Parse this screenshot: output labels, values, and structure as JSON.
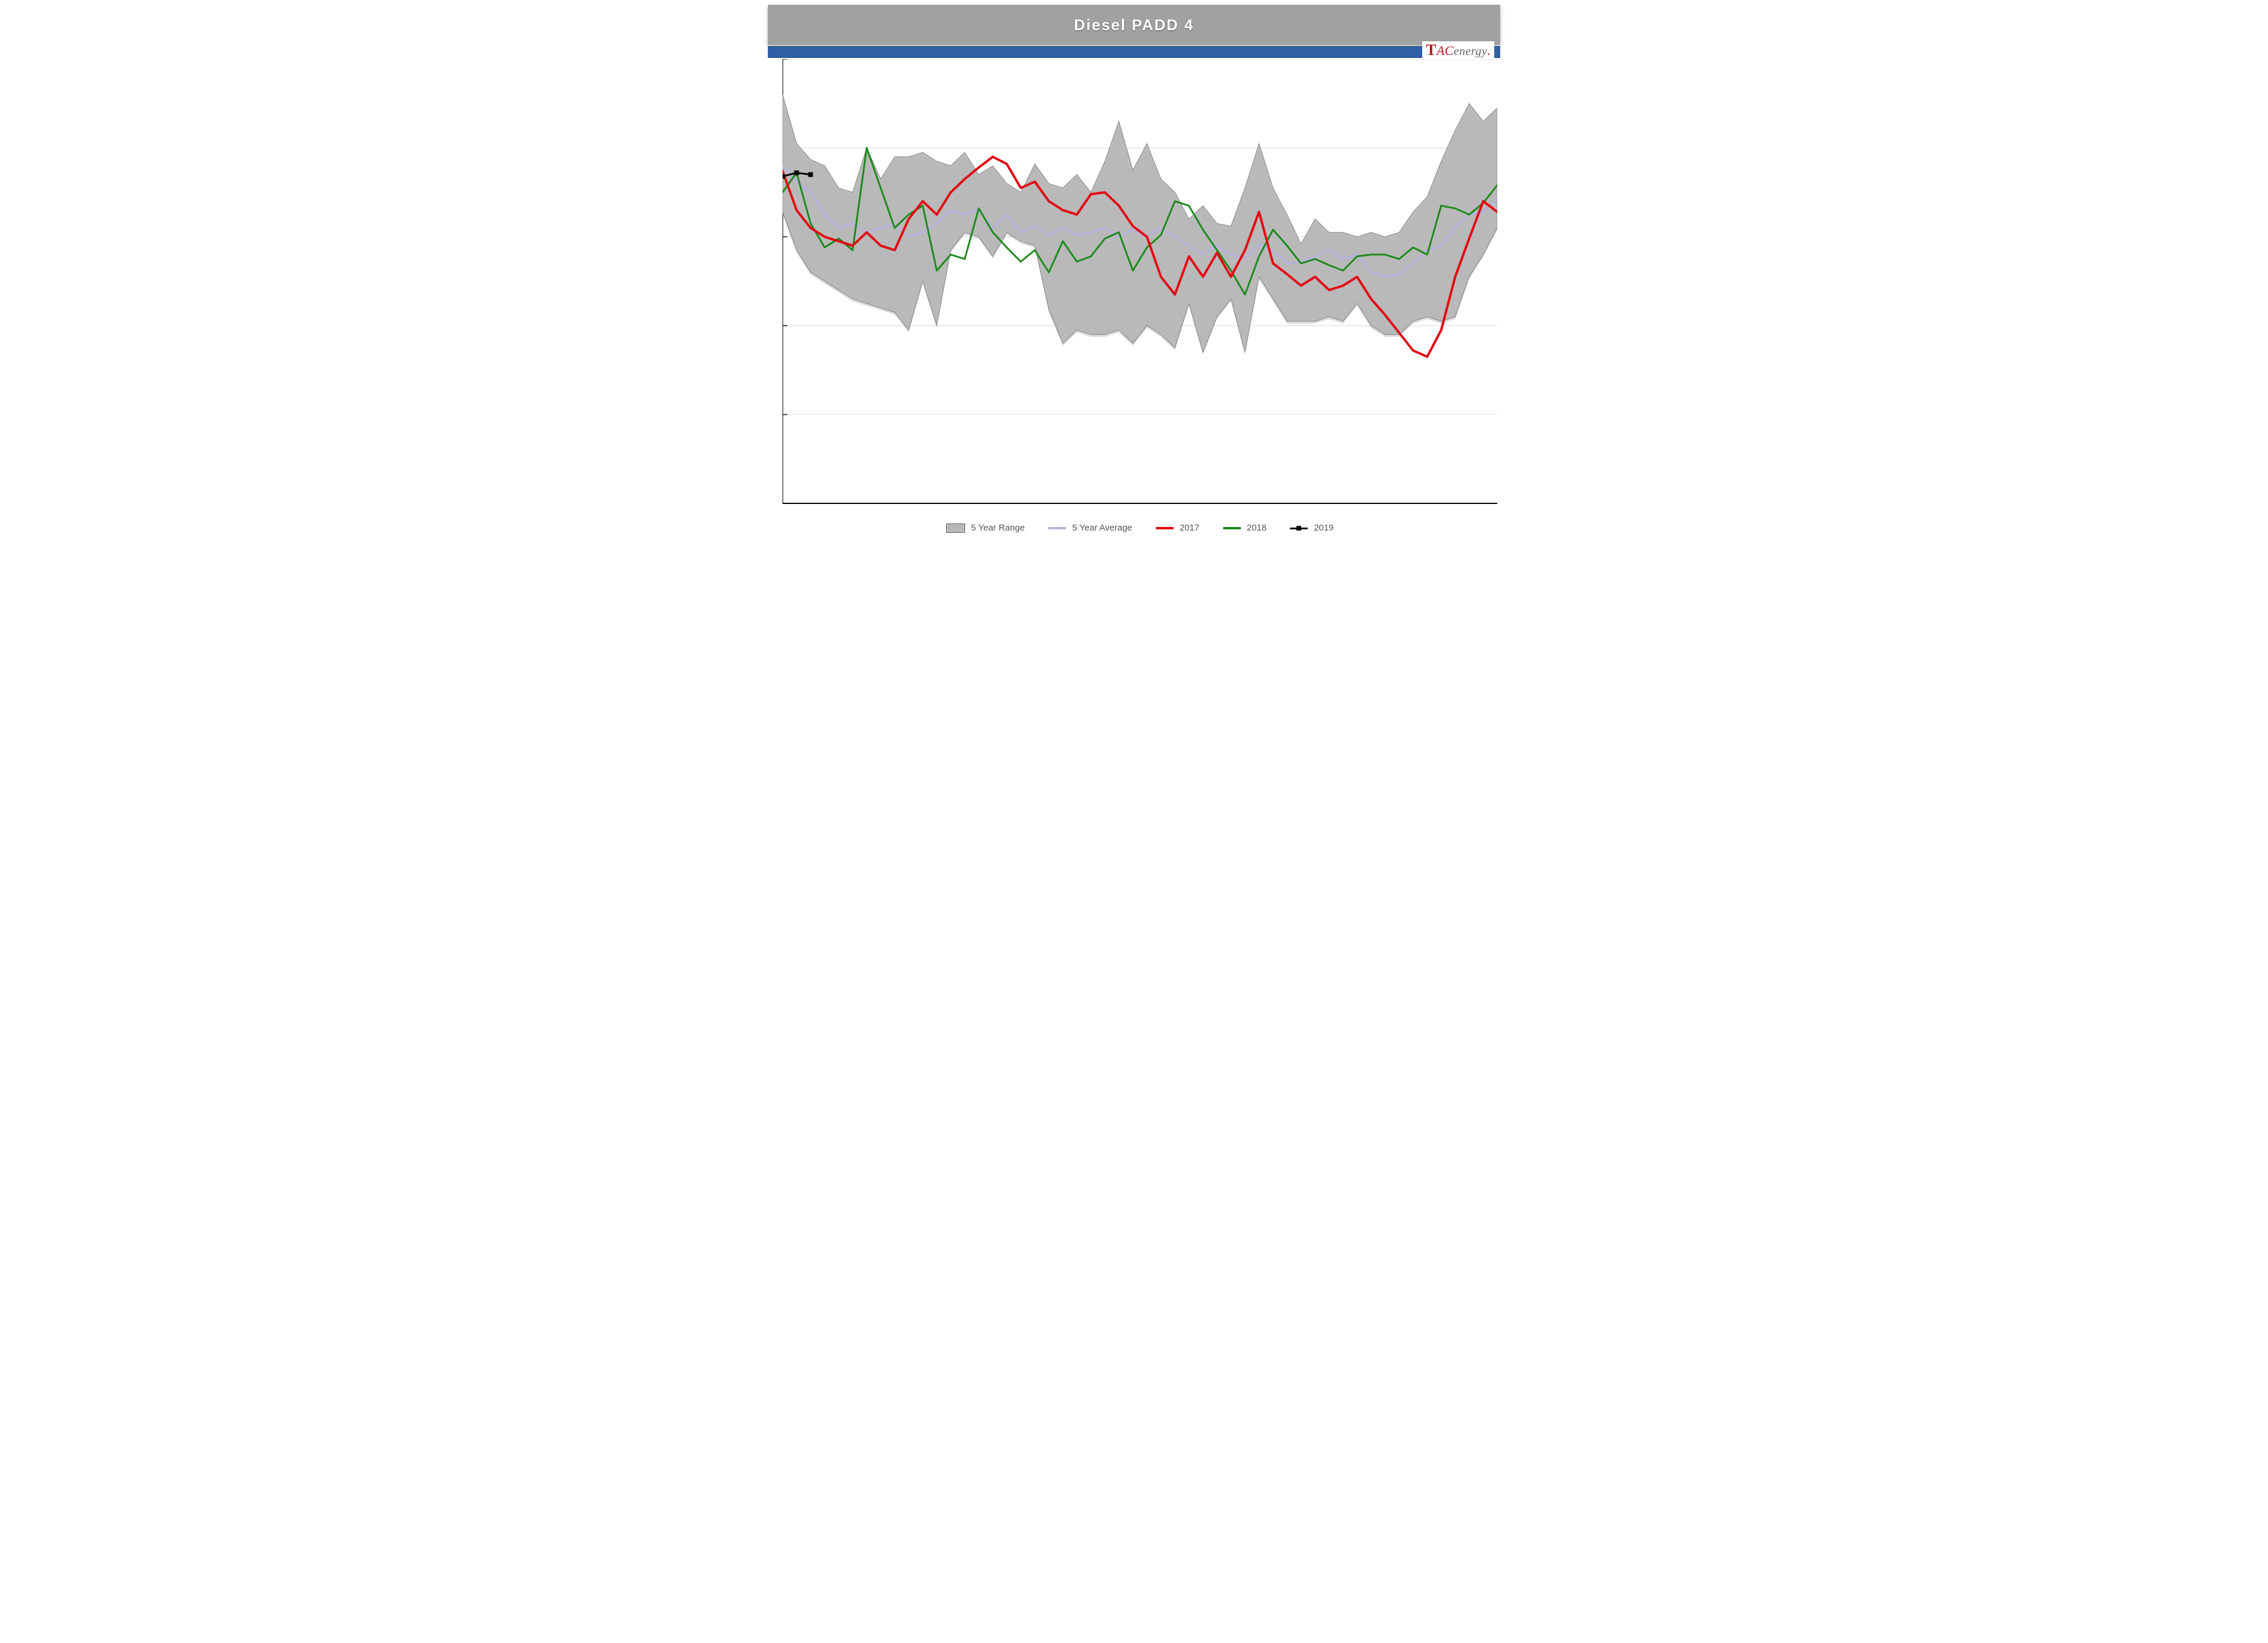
{
  "title": "Diesel  PADD  4",
  "logo": {
    "t": "T",
    "ac": "AC",
    "energy": "energy",
    "dot": "."
  },
  "legend": {
    "range": "5 Year Range",
    "avg": "5 Year Average",
    "y2017": "2017",
    "y2018": "2018",
    "y2019": "2019"
  },
  "chart": {
    "type": "line-with-band",
    "background_color": "#ffffff",
    "grid_color": "#e0e0e0",
    "title_bar_color": "#A1A1A1",
    "title_text_color": "#ffffff",
    "title_fontsize": 26,
    "blue_strip_color": "#2F5FA5",
    "x_count": 52,
    "ylim": [
      0,
      5
    ],
    "ytick_step": 1,
    "yticks": [
      0,
      1,
      2,
      3,
      4,
      5
    ],
    "label_fontsize": 14,
    "legend_fontsize": 15,
    "line_width": 4,
    "line_width_thin": 3,
    "marker_style_2019": "square",
    "marker_size_2019": 8,
    "colors": {
      "range_fill": "#B8B8B8",
      "range_stroke": "#808080",
      "avg": "#B7B2D8",
      "y2017": "#E30613",
      "y2018": "#1B8A1B",
      "y2019": "#000000"
    },
    "series": {
      "range_upper": [
        4.6,
        4.05,
        3.87,
        3.8,
        3.55,
        3.5,
        4.0,
        3.65,
        3.9,
        3.9,
        3.95,
        3.85,
        3.8,
        3.95,
        3.7,
        3.8,
        3.6,
        3.5,
        3.82,
        3.6,
        3.55,
        3.7,
        3.5,
        3.85,
        4.3,
        3.75,
        4.05,
        3.65,
        3.5,
        3.2,
        3.35,
        3.15,
        3.12,
        3.55,
        4.05,
        3.55,
        3.25,
        2.92,
        3.2,
        3.05,
        3.05,
        3.0,
        3.05,
        3.0,
        3.05,
        3.28,
        3.45,
        3.85,
        4.2,
        4.5,
        4.3,
        4.45
      ],
      "range_lower": [
        3.28,
        2.85,
        2.6,
        2.5,
        2.4,
        2.3,
        2.25,
        2.2,
        2.15,
        1.95,
        2.5,
        2.0,
        2.85,
        3.05,
        3.0,
        2.78,
        3.05,
        2.95,
        2.9,
        2.18,
        1.8,
        1.95,
        1.9,
        1.9,
        1.95,
        1.8,
        2.0,
        1.9,
        1.75,
        2.25,
        1.7,
        2.1,
        2.3,
        1.7,
        2.55,
        2.3,
        2.05,
        2.05,
        2.05,
        2.1,
        2.05,
        2.25,
        2.0,
        1.9,
        1.9,
        2.05,
        2.1,
        2.05,
        2.1,
        2.55,
        2.8,
        3.1
      ],
      "avg": [
        3.8,
        3.62,
        3.5,
        3.25,
        3.1,
        3.15,
        3.05,
        3.1,
        3.15,
        3.0,
        3.05,
        3.15,
        3.3,
        3.25,
        3.3,
        3.1,
        3.25,
        3.05,
        3.12,
        3.02,
        3.1,
        3.02,
        3.05,
        3.1,
        3.0,
        3.08,
        3.0,
        3.1,
        3.0,
        2.9,
        2.8,
        2.9,
        2.8,
        2.75,
        2.92,
        2.85,
        2.7,
        2.72,
        2.78,
        2.85,
        2.75,
        2.8,
        2.6,
        2.55,
        2.58,
        2.7,
        2.85,
        2.9,
        3.1,
        3.25,
        3.28,
        3.45
      ],
      "y2017": [
        3.74,
        3.3,
        3.1,
        3.0,
        2.95,
        2.9,
        3.05,
        2.9,
        2.85,
        3.2,
        3.4,
        3.25,
        3.5,
        3.65,
        3.78,
        3.9,
        3.82,
        3.55,
        3.62,
        3.4,
        3.3,
        3.25,
        3.48,
        3.5,
        3.35,
        3.12,
        3.0,
        2.55,
        2.35,
        2.78,
        2.55,
        2.82,
        2.55,
        2.85,
        3.28,
        2.7,
        2.58,
        2.45,
        2.55,
        2.4,
        2.45,
        2.55,
        2.3,
        2.12,
        1.92,
        1.72,
        1.65,
        1.95,
        2.55,
        2.98,
        3.4,
        3.28
      ],
      "y2018": [
        3.5,
        3.72,
        3.15,
        2.88,
        2.98,
        2.85,
        4.0,
        3.55,
        3.1,
        3.25,
        3.35,
        2.62,
        2.8,
        2.75,
        3.32,
        3.05,
        2.88,
        2.72,
        2.85,
        2.6,
        2.95,
        2.72,
        2.78,
        2.98,
        3.05,
        2.62,
        2.88,
        3.02,
        3.4,
        3.35,
        3.08,
        2.85,
        2.62,
        2.35,
        2.78,
        3.08,
        2.9,
        2.7,
        2.75,
        2.68,
        2.62,
        2.78,
        2.8,
        2.8,
        2.75,
        2.88,
        2.8,
        3.35,
        3.32,
        3.25,
        3.38,
        3.58
      ],
      "y2019": [
        3.68,
        3.72,
        3.7
      ]
    }
  }
}
